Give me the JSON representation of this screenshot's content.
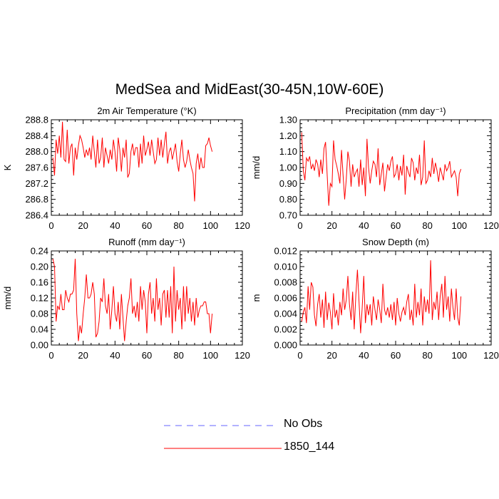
{
  "title": "MedSea and MidEast(30-45N,10W-60E)",
  "legend": [
    {
      "label": "No Obs",
      "color": "#6666ff",
      "dashed": true
    },
    {
      "label": "1850_144",
      "color": "#ff0000",
      "dashed": false
    }
  ],
  "chart_data": [
    {
      "type": "line",
      "title": "2m Air Temperature (°K)",
      "ylabel": "K",
      "xlim": [
        0,
        120
      ],
      "ylim": [
        286.4,
        288.8
      ],
      "xticks": [
        0,
        20,
        40,
        60,
        80,
        100,
        120
      ],
      "yticks": [
        "286.4",
        "286.8",
        "287.2",
        "287.6",
        "288.0",
        "288.4",
        "288.8"
      ],
      "series": [
        {
          "color": "#ff0000",
          "x_start": 1,
          "x_step": 1,
          "values": [
            287.85,
            287.4,
            288.3,
            287.95,
            288.4,
            287.85,
            288.75,
            287.8,
            287.75,
            288.55,
            287.7,
            288.1,
            288.2,
            287.4,
            288.1,
            287.8,
            288.15,
            288.4,
            288.3,
            288.1,
            287.85,
            288.05,
            287.9,
            288.1,
            287.8,
            288.4,
            288.0,
            287.6,
            288.3,
            287.7,
            287.85,
            288.35,
            287.6,
            288.1,
            287.9,
            287.7,
            288.05,
            287.8,
            288.3,
            288.0,
            287.5,
            288.35,
            288.05,
            287.5,
            288.1,
            287.85,
            288.3,
            287.35,
            287.45,
            288.0,
            288.2,
            287.9,
            288.1,
            288.1,
            287.6,
            288.2,
            287.7,
            288.4,
            287.9,
            288.05,
            288.25,
            287.9,
            288.3,
            288.0,
            287.7,
            287.8,
            288.35,
            287.9,
            288.3,
            287.85,
            288.2,
            288.5,
            287.7,
            288.0,
            288.1,
            287.8,
            288.0,
            288.2,
            287.75,
            287.5,
            287.95,
            288.3,
            287.8,
            287.6,
            287.75,
            288.05,
            287.8,
            287.6,
            287.45,
            286.75,
            287.7,
            287.95,
            287.55,
            287.85,
            287.6,
            287.6,
            288.15,
            288.2,
            288.35,
            288.15,
            288.0
          ]
        }
      ]
    },
    {
      "type": "line",
      "title": "Precipitation (mm day⁻¹)",
      "ylabel": "mm/d",
      "xlim": [
        0,
        120
      ],
      "ylim": [
        0.7,
        1.3
      ],
      "xticks": [
        0,
        20,
        40,
        60,
        80,
        100,
        120
      ],
      "yticks": [
        "0.70",
        "0.80",
        "0.90",
        "1.00",
        "1.10",
        "1.20",
        "1.30"
      ],
      "series": [
        {
          "color": "#ff0000",
          "x_start": 1,
          "x_step": 1,
          "values": [
            1.22,
            0.98,
            0.92,
            1.06,
            1.04,
            1.07,
            0.99,
            1.02,
            0.98,
            1.05,
            1.02,
            0.94,
            1.05,
            0.96,
            1.12,
            1.16,
            0.95,
            0.76,
            0.9,
            0.88,
            1.17,
            1.05,
            1.01,
            0.96,
            0.9,
            1.11,
            0.95,
            0.8,
            0.93,
            1.1,
            1.04,
            0.88,
            1.02,
            0.94,
            0.97,
            0.99,
            0.88,
            1.05,
            0.89,
            1.0,
            0.82,
            1.18,
            1.0,
            0.9,
            0.98,
            1.04,
            1.02,
            0.94,
            1.12,
            0.89,
            0.96,
            1.03,
            0.85,
            0.94,
            1.02,
            0.98,
            1.04,
            1.07,
            0.94,
            0.96,
            1.02,
            0.92,
            1.01,
            0.95,
            1.08,
            0.83,
            1.01,
            0.97,
            0.94,
            1.06,
            1.03,
            0.92,
            1.0,
            0.96,
            1.08,
            0.89,
            0.94,
            1.17,
            0.9,
            0.92,
            0.98,
            0.94,
            1.06,
            0.96,
            1.03,
            0.98,
            0.91,
            1.0,
            0.96,
            0.92,
            1.02,
            0.98,
            1.0,
            1.04,
            0.94,
            0.96,
            0.98,
            0.94,
            0.82,
            0.96,
            0.99
          ]
        }
      ]
    },
    {
      "type": "line",
      "title": "Runoff (mm day⁻¹)",
      "ylabel": "mm/d",
      "xlim": [
        0,
        120
      ],
      "ylim": [
        0.0,
        0.24
      ],
      "xticks": [
        0,
        20,
        40,
        60,
        80,
        100,
        120
      ],
      "yticks": [
        "0.00",
        "0.04",
        "0.08",
        "0.12",
        "0.16",
        "0.20",
        "0.24"
      ],
      "series": [
        {
          "color": "#ff0000",
          "x_start": 1,
          "x_step": 1,
          "values": [
            0.22,
            0.2,
            0.06,
            0.1,
            0.09,
            0.13,
            0.09,
            0.09,
            0.14,
            0.12,
            0.11,
            0.13,
            0.13,
            0.14,
            0.22,
            0.08,
            0.01,
            0.05,
            0.03,
            0.08,
            0.12,
            0.18,
            0.12,
            0.12,
            0.13,
            0.16,
            0.13,
            0.02,
            0.03,
            0.06,
            0.12,
            0.11,
            0.17,
            0.1,
            0.08,
            0.13,
            0.04,
            0.09,
            0.15,
            0.08,
            0.06,
            0.11,
            0.04,
            0.13,
            0.07,
            0.01,
            0.06,
            0.1,
            0.12,
            0.17,
            0.08,
            0.1,
            0.07,
            0.11,
            0.06,
            0.15,
            0.09,
            0.14,
            0.11,
            0.03,
            0.13,
            0.16,
            0.08,
            0.12,
            0.06,
            0.17,
            0.09,
            0.12,
            0.05,
            0.13,
            0.14,
            0.07,
            0.14,
            0.07,
            0.15,
            0.03,
            0.2,
            0.06,
            0.14,
            0.09,
            0.12,
            0.04,
            0.15,
            0.06,
            0.15,
            0.08,
            0.12,
            0.06,
            0.11,
            0.05,
            0.12,
            0.07,
            0.09,
            0.1,
            0.1,
            0.11,
            0.11,
            0.08,
            0.08,
            0.03,
            0.08
          ]
        }
      ]
    },
    {
      "type": "line",
      "title": "Snow Depth (m)",
      "ylabel": "m",
      "xlim": [
        0,
        120
      ],
      "ylim": [
        0.0,
        0.012
      ],
      "xticks": [
        0,
        20,
        40,
        60,
        80,
        100,
        120
      ],
      "yticks": [
        "0.000",
        "0.002",
        "0.004",
        "0.006",
        "0.008",
        "0.010",
        "0.012"
      ],
      "series": [
        {
          "color": "#ff0000",
          "x_start": 1,
          "x_step": 1,
          "values": [
            0.003,
            0.0042,
            0.0048,
            0.0028,
            0.0075,
            0.0045,
            0.008,
            0.0074,
            0.0038,
            0.0024,
            0.0052,
            0.0065,
            0.0035,
            0.0058,
            0.0022,
            0.0068,
            0.0032,
            0.0054,
            0.0042,
            0.002,
            0.0066,
            0.0035,
            0.0045,
            0.0025,
            0.0055,
            0.0038,
            0.0072,
            0.0045,
            0.0058,
            0.0088,
            0.0052,
            0.0032,
            0.0068,
            0.002,
            0.0064,
            0.0096,
            0.0056,
            0.0015,
            0.0048,
            0.0088,
            0.0028,
            0.0052,
            0.0038,
            0.0052,
            0.0025,
            0.0062,
            0.0045,
            0.0032,
            0.0058,
            0.0045,
            0.0028,
            0.0078,
            0.0045,
            0.0038,
            0.0048,
            0.0035,
            0.0052,
            0.0032,
            0.0055,
            0.0025,
            0.006,
            0.004,
            0.003,
            0.0042,
            0.0048,
            0.0038,
            0.0055,
            0.0065,
            0.0032,
            0.0045,
            0.0025,
            0.0078,
            0.0035,
            0.0055,
            0.0038,
            0.0072,
            0.0025,
            0.0062,
            0.0042,
            0.0058,
            0.004,
            0.0108,
            0.0032,
            0.0055,
            0.0045,
            0.0068,
            0.0032,
            0.0062,
            0.0078,
            0.0035,
            0.0088,
            0.0045,
            0.0062,
            0.003,
            0.0072,
            0.0048,
            0.0032,
            0.0072,
            0.0035,
            0.0025,
            0.0062
          ]
        }
      ]
    }
  ]
}
